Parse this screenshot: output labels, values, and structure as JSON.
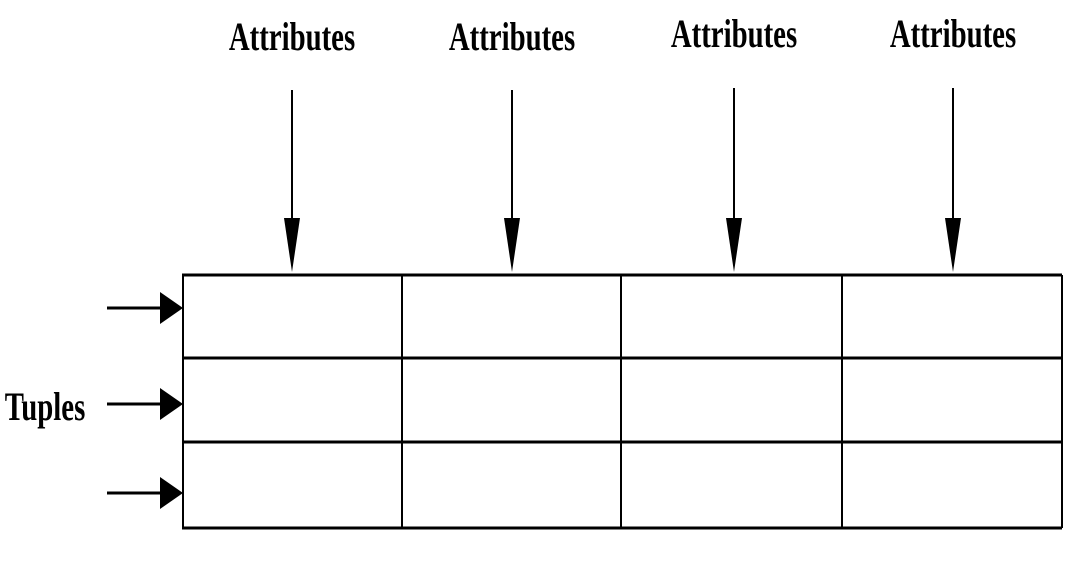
{
  "attribute_labels": [
    "Attributes",
    "Attributes",
    "Attributes",
    "Attributes"
  ],
  "tuples_label": "Tuples",
  "table": {
    "rows": 3,
    "columns": 4
  },
  "colors": {
    "line": "#000000",
    "background": "#ffffff"
  }
}
